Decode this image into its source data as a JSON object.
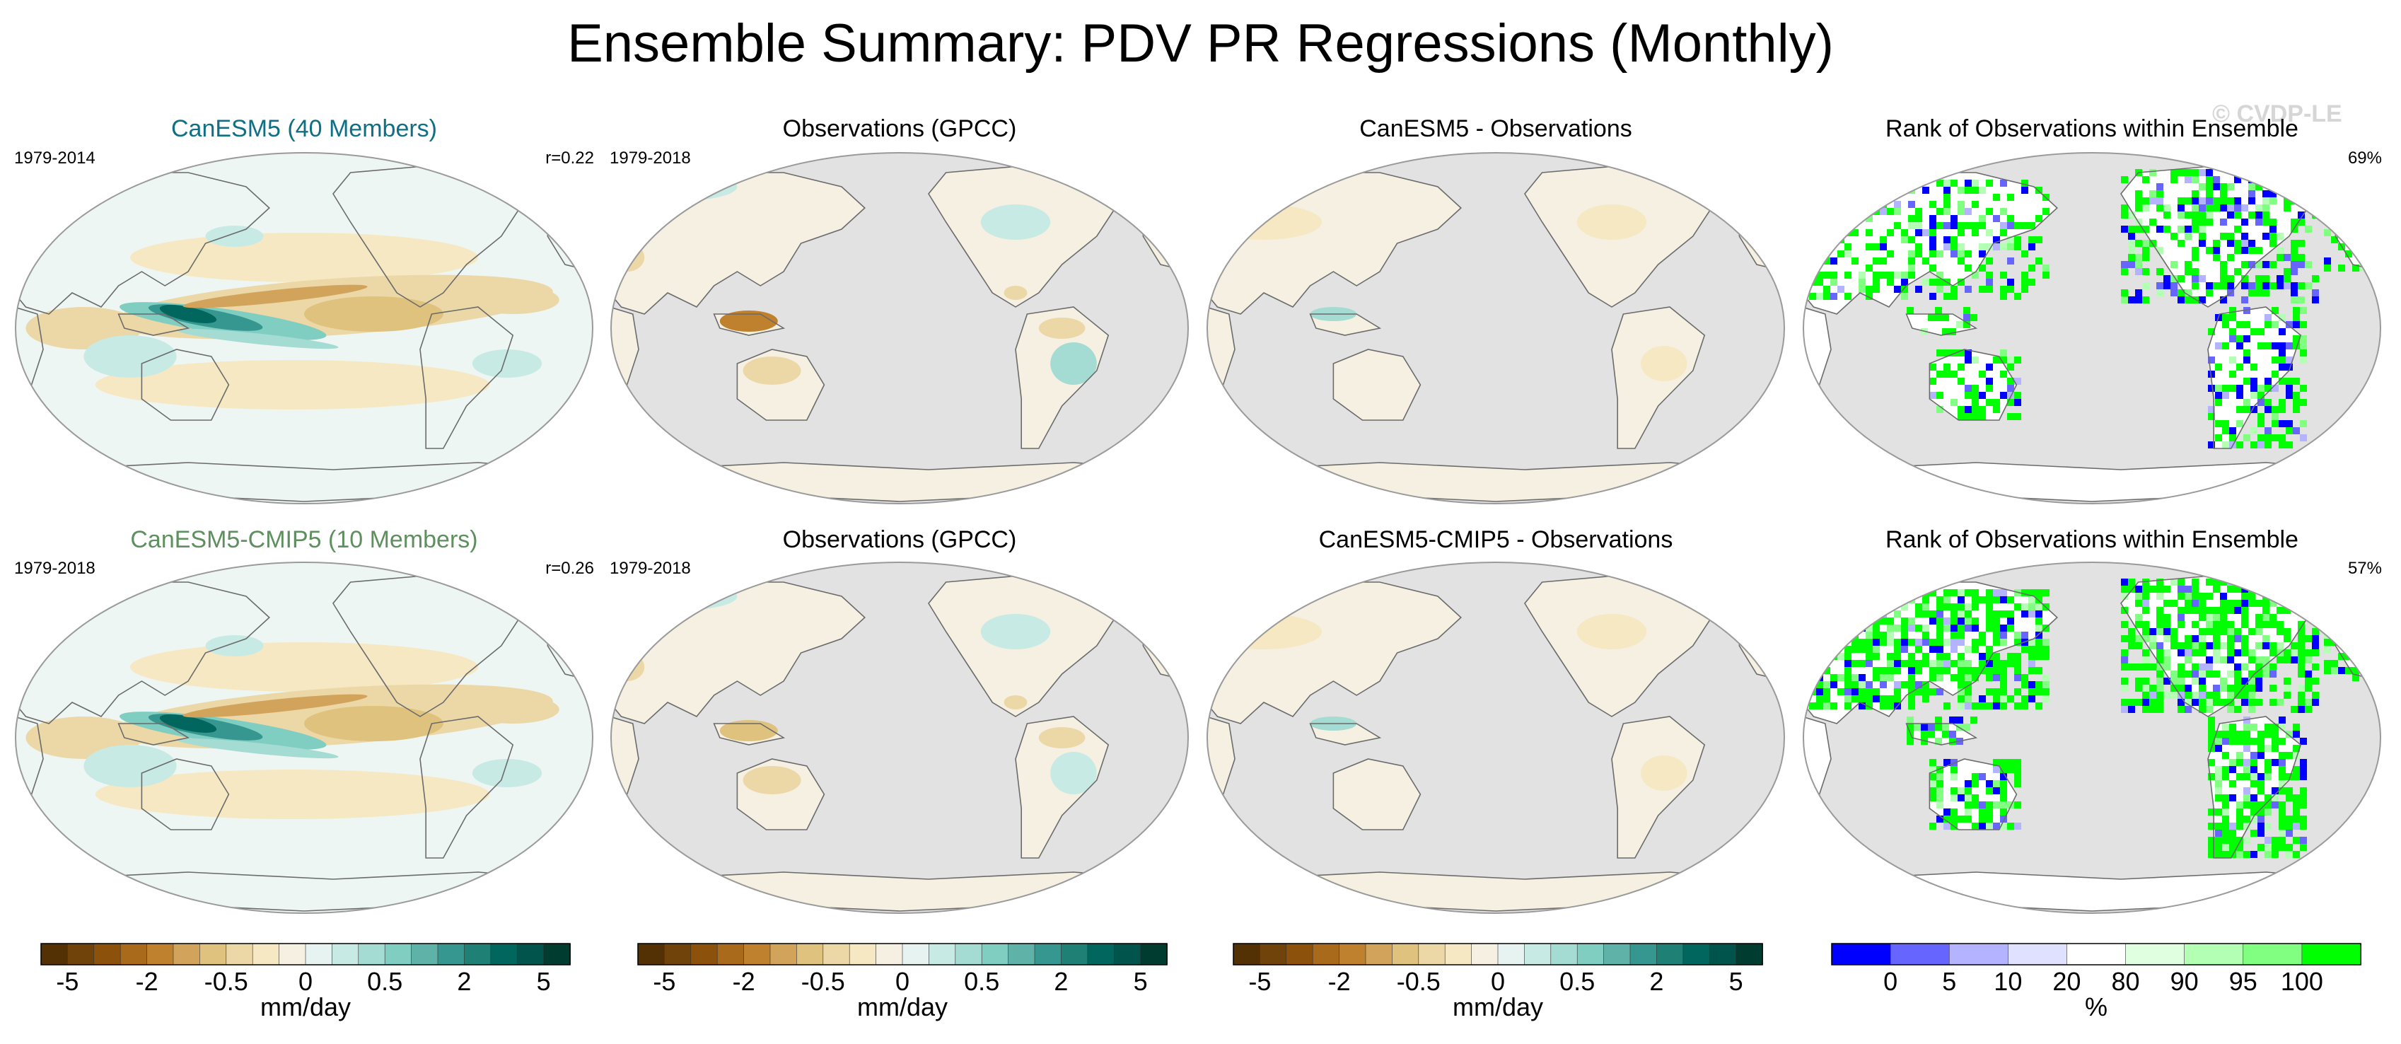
{
  "title": "Ensemble Summary: PDV PR Regressions (Monthly)",
  "watermark": "© CVDP-LE",
  "colors": {
    "ocean_gray": "#e2e2e2",
    "land_white": "#ffffff",
    "title_teal": "#0f6f85",
    "title_green": "#5e8f5e",
    "brbg": [
      "#543005",
      "#6f430a",
      "#8c510a",
      "#a96a1c",
      "#bf812d",
      "#d2a35a",
      "#dfc27d",
      "#ecd7a7",
      "#f6e8c3",
      "#f5f0e1",
      "#e6f3f1",
      "#c7eae5",
      "#a4dbd2",
      "#80cdc1",
      "#5fb2a8",
      "#35978f",
      "#1f8075",
      "#01665e",
      "#01544c",
      "#003c30"
    ],
    "rank_palette": [
      "#0000ff",
      "#6666ff",
      "#b3b3ff",
      "#e0e0ff",
      "#ffffff",
      "#e0ffe0",
      "#b3ffb3",
      "#80ff80",
      "#00ff00"
    ]
  },
  "panels": [
    {
      "id": "r1c1",
      "title": "CanESM5 (40 Members)",
      "left": "1979-2014",
      "right": "r=0.22",
      "type": "model"
    },
    {
      "id": "r1c2",
      "title": "Observations (GPCC)",
      "left": "1979-2018",
      "right": "",
      "type": "obs"
    },
    {
      "id": "r1c3",
      "title": "CanESM5 - Observations",
      "left": "",
      "right": "",
      "type": "diff"
    },
    {
      "id": "r1c4",
      "title": "Rank of Observations within Ensemble",
      "left": "",
      "right": "69%",
      "type": "rank"
    },
    {
      "id": "r2c1",
      "title": "CanESM5-CMIP5 (10 Members)",
      "left": "1979-2018",
      "right": "r=0.26",
      "type": "model"
    },
    {
      "id": "r2c2",
      "title": "Observations (GPCC)",
      "left": "1979-2018",
      "right": "",
      "type": "obs"
    },
    {
      "id": "r2c3",
      "title": "CanESM5-CMIP5 - Observations",
      "left": "",
      "right": "",
      "type": "diff"
    },
    {
      "id": "r2c4",
      "title": "Rank of Observations within Ensemble",
      "left": "",
      "right": "57%",
      "type": "rank"
    }
  ],
  "colorbars": [
    {
      "unit": "mm/day",
      "ticks": [
        "-5",
        "-2",
        "-0.5",
        "0",
        "0.5",
        "2",
        "5"
      ]
    },
    {
      "unit": "mm/day",
      "ticks": [
        "-5",
        "-2",
        "-0.5",
        "0",
        "0.5",
        "2",
        "5"
      ]
    },
    {
      "unit": "mm/day",
      "ticks": [
        "-5",
        "-2",
        "-0.5",
        "0",
        "0.5",
        "2",
        "5"
      ]
    },
    {
      "unit": "%",
      "ticks": [
        "0",
        "5",
        "10",
        "20",
        "80",
        "90",
        "95",
        "100"
      ]
    }
  ],
  "chart_data": {
    "type": "heatmap",
    "title": "Ensemble Summary: PDV PR Regressions (Monthly)",
    "projection": "Robinson (Pacific-centered)",
    "regression_levels_mm_per_day": [
      -5,
      -4,
      -3,
      -2,
      -1.5,
      -1,
      -0.5,
      -0.25,
      -0.1,
      0,
      0.1,
      0.25,
      0.5,
      1,
      1.5,
      2,
      3,
      4,
      5
    ],
    "rank_levels_percent": [
      0,
      5,
      10,
      20,
      80,
      90,
      95,
      100
    ],
    "maps": [
      {
        "panel": "CanESM5 (40 Members)",
        "period": "1979-2014",
        "pattern_correlation": 0.22,
        "features": [
          {
            "region": "central-east tropical Pacific",
            "sign": "positive",
            "max_mm_day": 2
          },
          {
            "region": "off-equatorial tropical Pacific bands",
            "sign": "negative",
            "min_mm_day": -1
          },
          {
            "region": "Maritime Continent",
            "sign": "negative",
            "min_mm_day": -0.5
          }
        ]
      },
      {
        "panel": "Observations (GPCC)",
        "period": "1979-2018",
        "features": [
          {
            "region": "Maritime Continent / northern Australia",
            "sign": "negative",
            "min_mm_day": -2
          },
          {
            "region": "southeastern South America",
            "sign": "positive",
            "max_mm_day": 0.5
          }
        ]
      },
      {
        "panel": "CanESM5 - Observations",
        "features": [
          {
            "region": "Maritime Continent",
            "sign": "positive",
            "max_mm_day": 0.5
          }
        ]
      },
      {
        "panel": "Rank of Observations within Ensemble",
        "percent_value": 69
      },
      {
        "panel": "CanESM5-CMIP5 (10 Members)",
        "period": "1979-2018",
        "pattern_correlation": 0.26
      },
      {
        "panel": "Observations (GPCC)",
        "period": "1979-2018"
      },
      {
        "panel": "CanESM5-CMIP5 - Observations"
      },
      {
        "panel": "Rank of Observations within Ensemble",
        "percent_value": 57
      }
    ]
  }
}
